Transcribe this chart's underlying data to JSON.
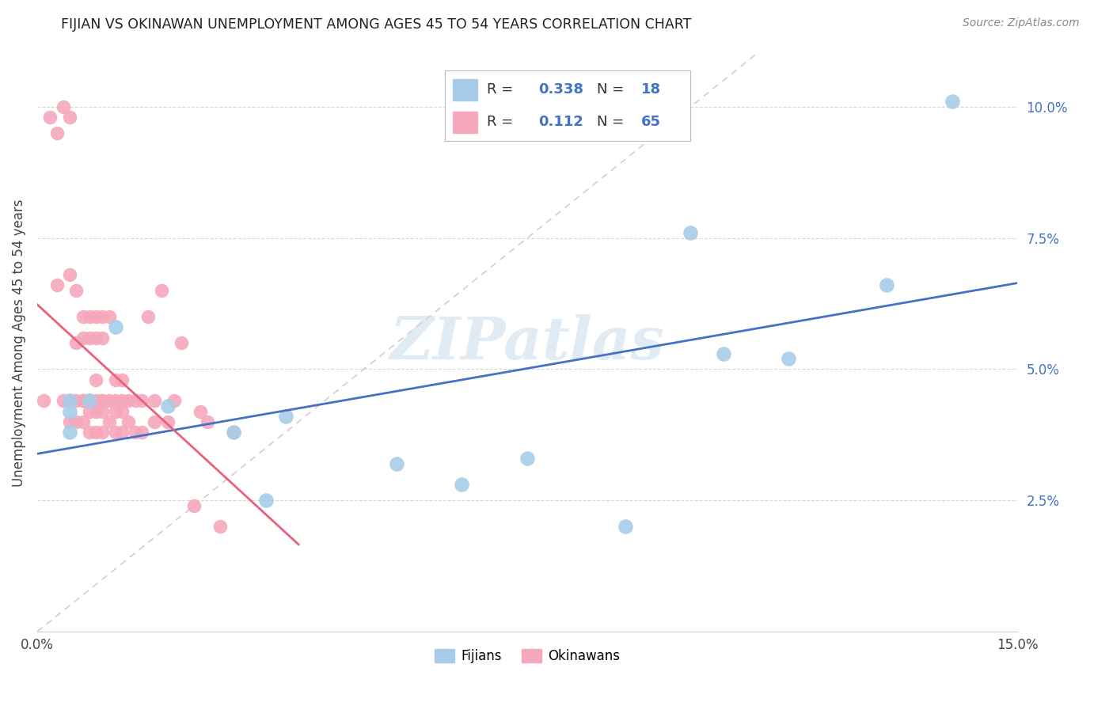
{
  "title": "FIJIAN VS OKINAWAN UNEMPLOYMENT AMONG AGES 45 TO 54 YEARS CORRELATION CHART",
  "source": "Source: ZipAtlas.com",
  "ylabel": "Unemployment Among Ages 45 to 54 years",
  "xlim": [
    0,
    0.15
  ],
  "ylim": [
    0,
    0.11
  ],
  "yticks_right": [
    0.025,
    0.05,
    0.075,
    0.1
  ],
  "ytick_labels_right": [
    "2.5%",
    "5.0%",
    "7.5%",
    "10.0%"
  ],
  "fijian_color": "#a8cce8",
  "okinawan_color": "#f5a8bc",
  "fijian_line_color": "#4472c4",
  "okinawan_line_color": "#e8607a",
  "diagonal_color": "#d0b0b8",
  "watermark": "ZIPatlas",
  "legend_fijian_R": "0.338",
  "legend_fijian_N": "18",
  "legend_okinawan_R": "0.112",
  "legend_okinawan_N": "65",
  "fijian_x": [
    0.005,
    0.005,
    0.005,
    0.008,
    0.012,
    0.02,
    0.03,
    0.035,
    0.038,
    0.055,
    0.065,
    0.075,
    0.09,
    0.1,
    0.105,
    0.115,
    0.13,
    0.14
  ],
  "fijian_y": [
    0.044,
    0.042,
    0.038,
    0.044,
    0.058,
    0.043,
    0.038,
    0.025,
    0.041,
    0.032,
    0.028,
    0.033,
    0.02,
    0.076,
    0.053,
    0.052,
    0.066,
    0.101
  ],
  "okinawan_x": [
    0.001,
    0.002,
    0.003,
    0.003,
    0.004,
    0.004,
    0.005,
    0.005,
    0.005,
    0.005,
    0.006,
    0.006,
    0.006,
    0.006,
    0.007,
    0.007,
    0.007,
    0.007,
    0.007,
    0.008,
    0.008,
    0.008,
    0.008,
    0.008,
    0.009,
    0.009,
    0.009,
    0.009,
    0.009,
    0.009,
    0.01,
    0.01,
    0.01,
    0.01,
    0.01,
    0.01,
    0.011,
    0.011,
    0.011,
    0.012,
    0.012,
    0.012,
    0.012,
    0.013,
    0.013,
    0.013,
    0.013,
    0.014,
    0.014,
    0.015,
    0.015,
    0.016,
    0.016,
    0.017,
    0.018,
    0.018,
    0.019,
    0.02,
    0.021,
    0.022,
    0.024,
    0.025,
    0.026,
    0.028,
    0.03
  ],
  "okinawan_y": [
    0.044,
    0.098,
    0.095,
    0.066,
    0.1,
    0.044,
    0.098,
    0.068,
    0.044,
    0.04,
    0.065,
    0.055,
    0.044,
    0.04,
    0.06,
    0.056,
    0.044,
    0.044,
    0.04,
    0.06,
    0.056,
    0.044,
    0.042,
    0.038,
    0.06,
    0.056,
    0.048,
    0.044,
    0.042,
    0.038,
    0.06,
    0.056,
    0.044,
    0.044,
    0.042,
    0.038,
    0.06,
    0.044,
    0.04,
    0.048,
    0.044,
    0.042,
    0.038,
    0.048,
    0.044,
    0.042,
    0.038,
    0.044,
    0.04,
    0.044,
    0.038,
    0.044,
    0.038,
    0.06,
    0.044,
    0.04,
    0.065,
    0.04,
    0.044,
    0.055,
    0.024,
    0.042,
    0.04,
    0.02,
    0.038
  ],
  "background_color": "#ffffff",
  "grid_color": "#d8d8d8"
}
